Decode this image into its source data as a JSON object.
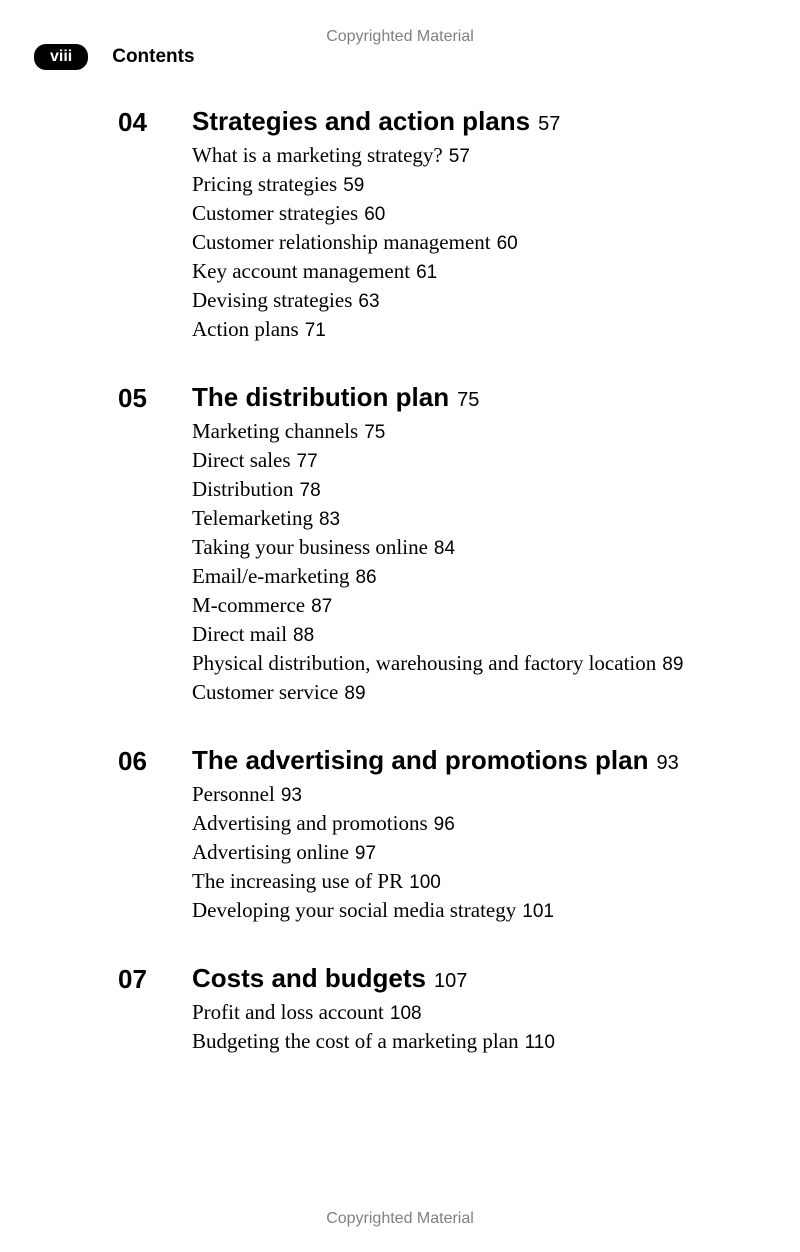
{
  "copyright_text": "Copyrighted Material",
  "page_number": "viii",
  "contents_label": "Contents",
  "chapters": [
    {
      "num": "04",
      "title": "Strategies and action plans",
      "page": "57",
      "entries": [
        {
          "text": "What is a marketing strategy?",
          "page": "57"
        },
        {
          "text": "Pricing strategies",
          "page": "59"
        },
        {
          "text": "Customer strategies",
          "page": "60"
        },
        {
          "text": "Customer relationship management",
          "page": "60"
        },
        {
          "text": "Key account management",
          "page": "61"
        },
        {
          "text": "Devising strategies",
          "page": "63"
        },
        {
          "text": "Action plans",
          "page": "71"
        }
      ]
    },
    {
      "num": "05",
      "title": "The distribution plan",
      "page": "75",
      "entries": [
        {
          "text": "Marketing channels",
          "page": "75"
        },
        {
          "text": "Direct sales",
          "page": "77"
        },
        {
          "text": "Distribution",
          "page": "78"
        },
        {
          "text": "Telemarketing",
          "page": "83"
        },
        {
          "text": "Taking your business online",
          "page": "84"
        },
        {
          "text": "Email/e-marketing",
          "page": "86"
        },
        {
          "text": "M-commerce",
          "page": "87"
        },
        {
          "text": "Direct mail",
          "page": "88"
        },
        {
          "text": "Physical distribution, warehousing and factory location",
          "page": "89"
        },
        {
          "text": "Customer service",
          "page": "89"
        }
      ]
    },
    {
      "num": "06",
      "title": "The advertising and promotions plan",
      "page": "93",
      "entries": [
        {
          "text": "Personnel",
          "page": "93"
        },
        {
          "text": "Advertising and promotions",
          "page": "96"
        },
        {
          "text": "Advertising online",
          "page": "97"
        },
        {
          "text": "The increasing use of PR",
          "page": "100"
        },
        {
          "text": "Developing your social media strategy",
          "page": "101"
        }
      ]
    },
    {
      "num": "07",
      "title": "Costs and budgets",
      "page": "107",
      "entries": [
        {
          "text": "Profit and loss account",
          "page": "108"
        },
        {
          "text": "Budgeting the cost of a marketing plan",
          "page": "110"
        }
      ]
    }
  ]
}
